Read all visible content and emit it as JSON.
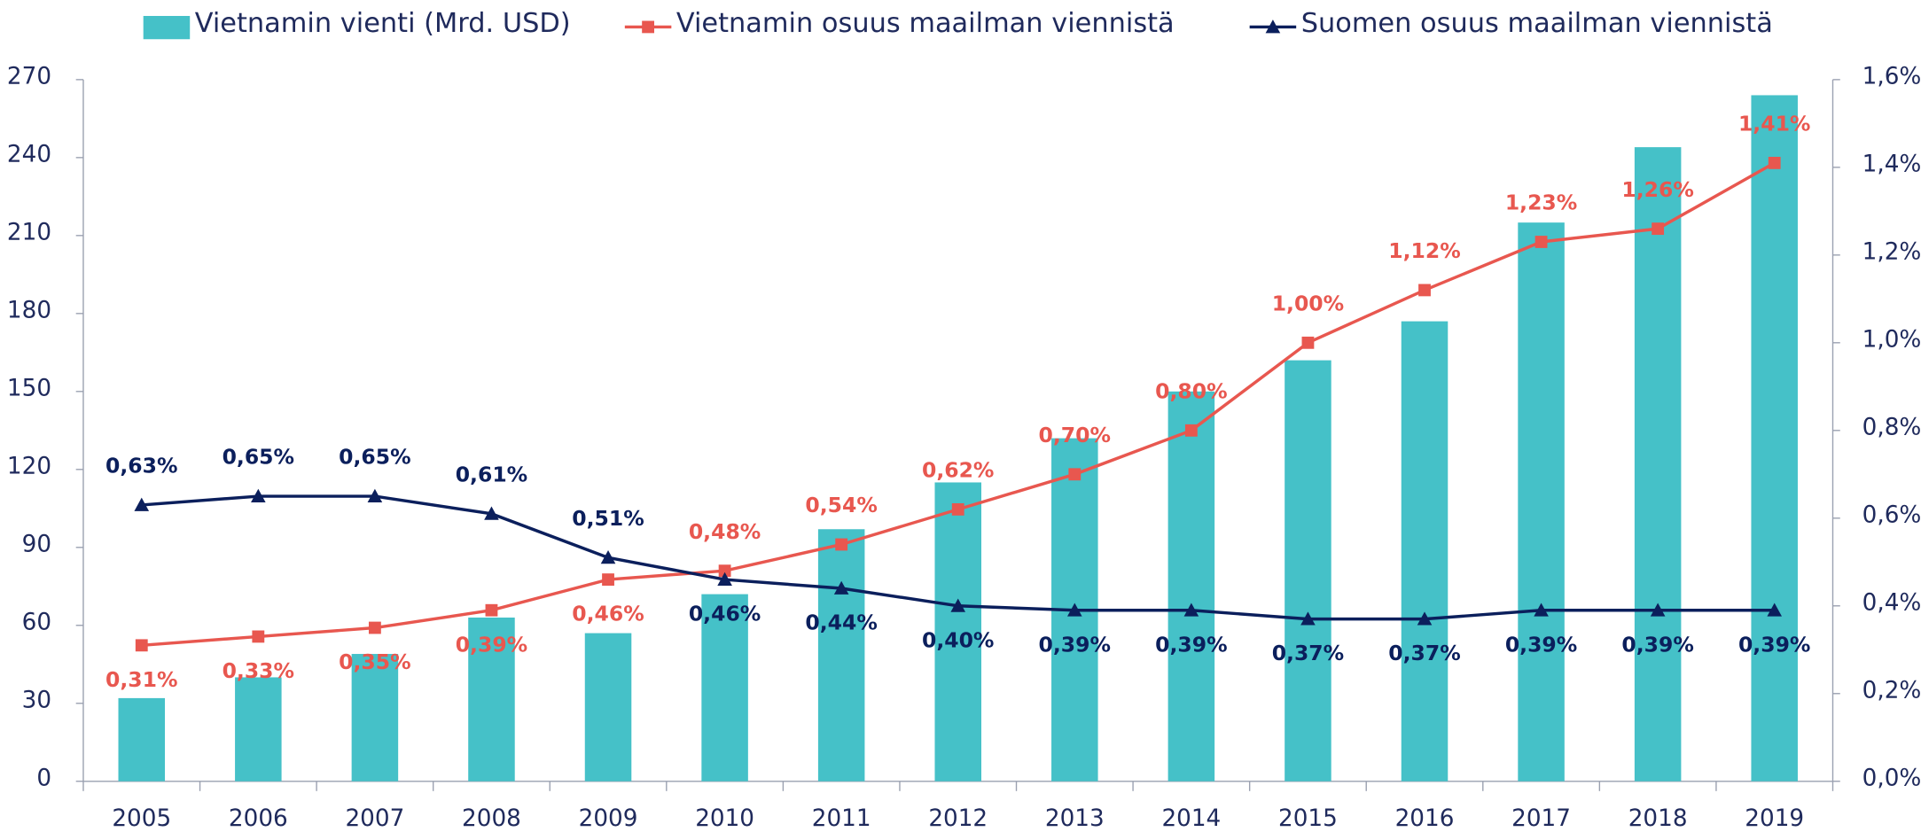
{
  "chart_data": {
    "type": "bar",
    "categories": [
      "2005",
      "2006",
      "2007",
      "2008",
      "2009",
      "2010",
      "2011",
      "2012",
      "2013",
      "2014",
      "2015",
      "2016",
      "2017",
      "2018",
      "2019"
    ],
    "series": [
      {
        "name": "Vietnamin vienti (Mrd. USD)",
        "type": "bar",
        "color": "#45c1c8",
        "values": [
          32,
          40,
          49,
          63,
          57,
          72,
          97,
          115,
          132,
          150,
          162,
          177,
          215,
          244,
          264
        ]
      },
      {
        "name": "Vietnamin osuus maailman viennistä",
        "type": "line",
        "axis": "y2",
        "color": "#e8574f",
        "marker": "square",
        "values": [
          0.31,
          0.33,
          0.35,
          0.39,
          0.46,
          0.48,
          0.54,
          0.62,
          0.7,
          0.8,
          1.0,
          1.12,
          1.23,
          1.26,
          1.41
        ],
        "value_labels": [
          "0,31%",
          "0,33%",
          "0,35%",
          "0,39%",
          "0,46%",
          "0,48%",
          "0,54%",
          "0,62%",
          "0,70%",
          "0,80%",
          "1,00%",
          "1,12%",
          "1,23%",
          "1,26%",
          "1,41%"
        ]
      },
      {
        "name": "Suomen osuus maailman viennistä",
        "type": "line",
        "axis": "y2",
        "color": "#0b1f5c",
        "marker": "triangle",
        "values": [
          0.63,
          0.65,
          0.65,
          0.61,
          0.51,
          0.46,
          0.44,
          0.4,
          0.39,
          0.39,
          0.37,
          0.37,
          0.39,
          0.39,
          0.39
        ],
        "value_labels": [
          "0,63%",
          "0,65%",
          "0,65%",
          "0,61%",
          "0,51%",
          "0,46%",
          "0,44%",
          "0,40%",
          "0,39%",
          "0,39%",
          "0,37%",
          "0,37%",
          "0,39%",
          "0,39%",
          "0,39%"
        ]
      }
    ],
    "ylim": [
      0,
      270
    ],
    "yticks": [
      0,
      30,
      60,
      90,
      120,
      150,
      180,
      210,
      240,
      270
    ],
    "y2lim": [
      0,
      1.6
    ],
    "y2ticks": [
      {
        "value": 0,
        "label": "0,0%"
      },
      {
        "value": 0.2,
        "label": "0,2%"
      },
      {
        "value": 0.4,
        "label": "0,4%"
      },
      {
        "value": 0.6,
        "label": "0,6%"
      },
      {
        "value": 0.8,
        "label": "0,8%"
      },
      {
        "value": 1.0,
        "label": "1,0%"
      },
      {
        "value": 1.2,
        "label": "1,2%"
      },
      {
        "value": 1.4,
        "label": "1,4%"
      },
      {
        "value": 1.6,
        "label": "1,6%"
      }
    ],
    "grid": false
  }
}
